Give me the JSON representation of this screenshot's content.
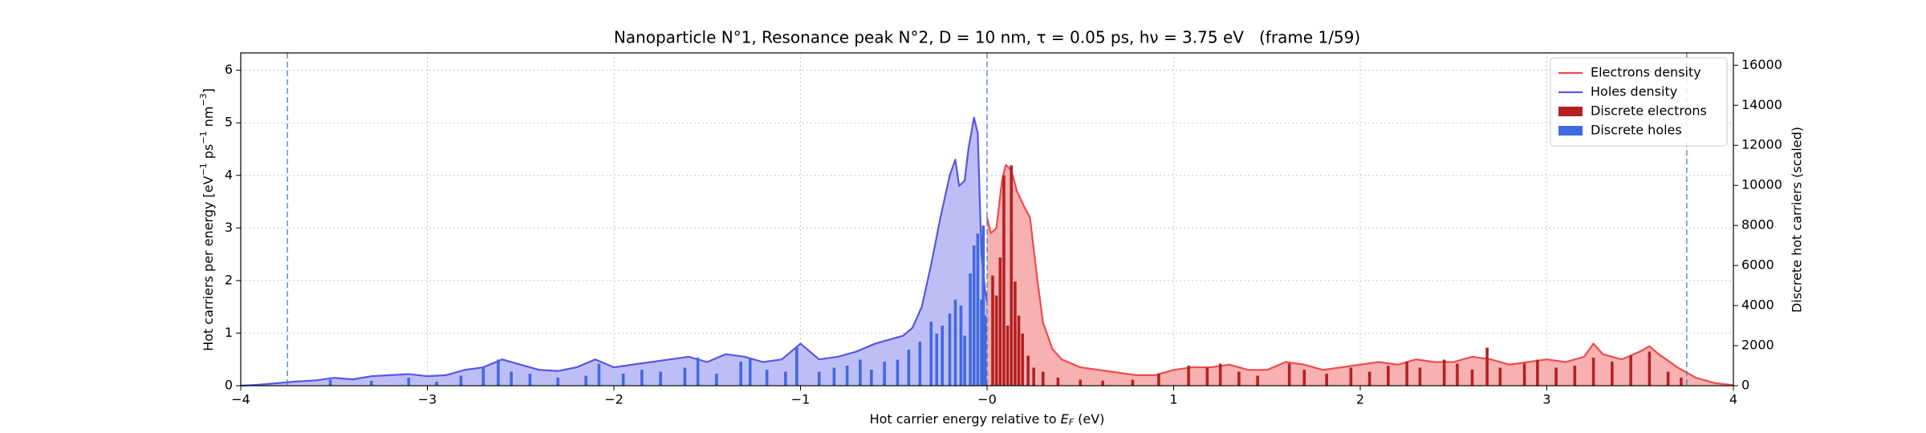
{
  "chart_data": {
    "type": "combo",
    "title": "Nanoparticle N°1, Resonance peak N°2, D = 10 nm, τ = 0.05 ps, hν = 3.75 eV   (frame 1/59)",
    "xlabel": [
      "Hot carrier energy relative to ",
      "E",
      "F",
      " (eV)"
    ],
    "ylabel": [
      "Hot carriers per energy [eV",
      "−1",
      " ps",
      "−1",
      " nm",
      "−3",
      "]"
    ],
    "y2label": "Discrete hot carriers (scaled)",
    "xlim": [
      -4,
      4
    ],
    "xticks": [
      {
        "value": -4,
        "label": "−4"
      },
      {
        "value": -3,
        "label": "−3"
      },
      {
        "value": -2,
        "label": "−2"
      },
      {
        "value": -1,
        "label": "−1"
      },
      {
        "value": 0,
        "label": "−0"
      },
      1,
      2,
      3,
      4
    ],
    "ylim": [
      0,
      6.33
    ],
    "yticks": [
      0,
      1,
      2,
      3,
      4,
      5,
      6
    ],
    "y2lim": [
      0,
      16613
    ],
    "y2ticks": [
      0,
      2000,
      4000,
      6000,
      8000,
      10000,
      12000,
      14000,
      16000
    ],
    "grid": true,
    "legend": "upper right",
    "vlines": [
      -3.75,
      0,
      3.75
    ],
    "series": [
      {
        "name": "Electrons density",
        "type": "area",
        "color": "#ee4c4c",
        "fill_color": "#f6a3a3",
        "x": [
          0,
          0.02,
          0.05,
          0.08,
          0.1,
          0.13,
          0.16,
          0.2,
          0.23,
          0.27,
          0.3,
          0.35,
          0.4,
          0.5,
          0.6,
          0.7,
          0.8,
          0.9,
          1.0,
          1.1,
          1.2,
          1.3,
          1.4,
          1.5,
          1.6,
          1.7,
          1.8,
          1.9,
          2.0,
          2.1,
          2.2,
          2.3,
          2.4,
          2.5,
          2.6,
          2.7,
          2.8,
          2.9,
          3.0,
          3.1,
          3.2,
          3.25,
          3.3,
          3.4,
          3.5,
          3.55,
          3.6,
          3.7,
          3.8,
          3.9,
          4.0
        ],
        "values": [
          3.2,
          2.9,
          3.0,
          3.9,
          4.2,
          4.1,
          3.7,
          3.4,
          3.2,
          2.0,
          1.2,
          0.7,
          0.5,
          0.35,
          0.3,
          0.25,
          0.2,
          0.2,
          0.3,
          0.35,
          0.35,
          0.4,
          0.3,
          0.3,
          0.45,
          0.4,
          0.3,
          0.35,
          0.4,
          0.45,
          0.4,
          0.5,
          0.45,
          0.45,
          0.55,
          0.5,
          0.4,
          0.45,
          0.5,
          0.45,
          0.55,
          0.8,
          0.6,
          0.5,
          0.65,
          0.75,
          0.6,
          0.35,
          0.15,
          0.05,
          0.01
        ]
      },
      {
        "name": "Holes density",
        "type": "area",
        "color": "#5656e6",
        "fill_color": "#b3b3f6",
        "x": [
          -4,
          -3.9,
          -3.8,
          -3.7,
          -3.6,
          -3.5,
          -3.4,
          -3.3,
          -3.2,
          -3.1,
          -3.0,
          -2.9,
          -2.8,
          -2.7,
          -2.6,
          -2.5,
          -2.4,
          -2.3,
          -2.2,
          -2.1,
          -2.0,
          -1.9,
          -1.8,
          -1.7,
          -1.6,
          -1.5,
          -1.4,
          -1.3,
          -1.2,
          -1.1,
          -1.0,
          -0.9,
          -0.8,
          -0.7,
          -0.6,
          -0.5,
          -0.45,
          -0.4,
          -0.35,
          -0.3,
          -0.25,
          -0.2,
          -0.17,
          -0.15,
          -0.12,
          -0.1,
          -0.07,
          -0.05,
          -0.03,
          -0.01,
          0
        ],
        "values": [
          0,
          0.02,
          0.05,
          0.08,
          0.1,
          0.15,
          0.12,
          0.18,
          0.2,
          0.22,
          0.18,
          0.2,
          0.3,
          0.35,
          0.5,
          0.4,
          0.3,
          0.28,
          0.35,
          0.5,
          0.35,
          0.4,
          0.45,
          0.5,
          0.55,
          0.45,
          0.6,
          0.55,
          0.45,
          0.5,
          0.8,
          0.5,
          0.55,
          0.65,
          0.8,
          0.9,
          0.95,
          1.1,
          1.5,
          2.3,
          3.2,
          4.0,
          4.3,
          3.8,
          3.9,
          4.5,
          5.1,
          4.8,
          2.5,
          1.8,
          1.6
        ]
      },
      {
        "name": "Discrete electrons",
        "type": "bar",
        "axis": "y2",
        "color": "#b22222",
        "x": [
          0.03,
          0.05,
          0.07,
          0.09,
          0.11,
          0.13,
          0.15,
          0.17,
          0.19,
          0.22,
          0.25,
          0.3,
          0.38,
          0.5,
          0.62,
          0.78,
          0.92,
          1.08,
          1.18,
          1.25,
          1.35,
          1.45,
          1.62,
          1.7,
          1.82,
          1.95,
          2.05,
          2.15,
          2.25,
          2.32,
          2.45,
          2.52,
          2.6,
          2.68,
          2.75,
          2.88,
          2.95,
          3.05,
          3.15,
          3.25,
          3.35,
          3.45,
          3.55,
          3.65,
          3.72
        ],
        "values": [
          5500,
          4500,
          6400,
          10500,
          3000,
          11000,
          5200,
          3500,
          2600,
          1500,
          900,
          700,
          400,
          300,
          250,
          300,
          600,
          1000,
          900,
          1100,
          700,
          500,
          1100,
          800,
          600,
          900,
          700,
          1000,
          1200,
          900,
          1300,
          1100,
          800,
          1900,
          900,
          1100,
          1300,
          900,
          1000,
          1400,
          1200,
          1500,
          1700,
          700,
          400
        ]
      },
      {
        "name": "Discrete holes",
        "type": "bar",
        "axis": "y2",
        "color": "#4169e1",
        "x": [
          -3.52,
          -3.3,
          -3.1,
          -2.95,
          -2.82,
          -2.7,
          -2.62,
          -2.55,
          -2.45,
          -2.3,
          -2.15,
          -2.08,
          -1.95,
          -1.85,
          -1.75,
          -1.62,
          -1.55,
          -1.45,
          -1.32,
          -1.27,
          -1.18,
          -1.08,
          -1.02,
          -0.9,
          -0.82,
          -0.75,
          -0.68,
          -0.62,
          -0.55,
          -0.48,
          -0.42,
          -0.36,
          -0.3,
          -0.27,
          -0.24,
          -0.2,
          -0.17,
          -0.14,
          -0.12,
          -0.09,
          -0.07,
          -0.05,
          -0.03,
          -0.02,
          -0.01
        ],
        "values": [
          300,
          250,
          400,
          200,
          500,
          900,
          1300,
          700,
          600,
          400,
          500,
          1100,
          600,
          800,
          700,
          900,
          1400,
          600,
          1200,
          1400,
          800,
          700,
          1900,
          700,
          900,
          1000,
          1300,
          800,
          1200,
          1300,
          1800,
          2200,
          3200,
          2600,
          3000,
          3600,
          4300,
          4000,
          2500,
          5600,
          7000,
          7600,
          4300,
          8000,
          3500
        ]
      }
    ]
  }
}
